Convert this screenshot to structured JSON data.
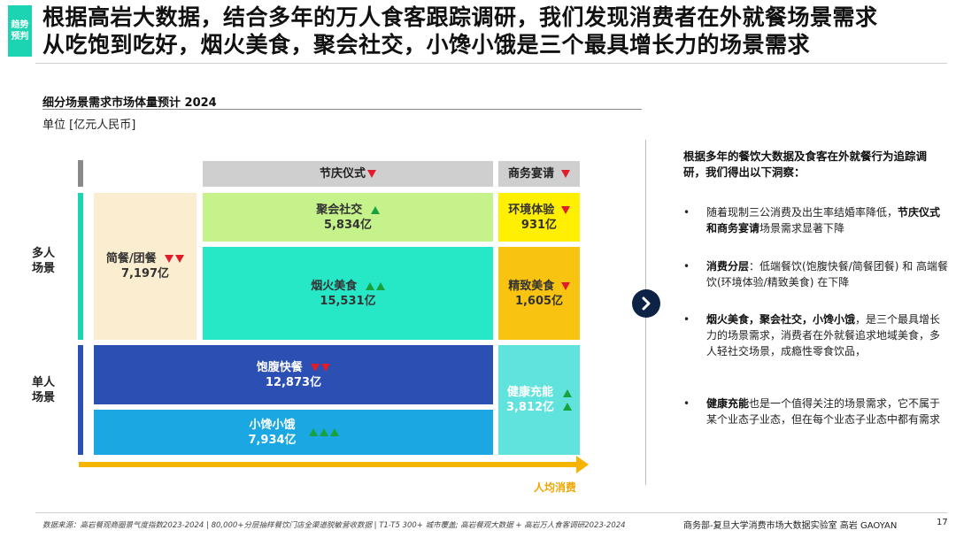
{
  "tag": {
    "line1": "趋势",
    "line2": "预判"
  },
  "title": {
    "line1": "根据高岩大数据，结合多年的万人食客跟踪调研，我们发现消费者在外就餐场景需求",
    "line2": "从吃饱到吃好，烟火美食，聚会社交，小馋小饿是三个最具增长力的场景需求"
  },
  "diagram": {
    "subtitle": "细分场景需求市场体量预计 2024",
    "unit": "单位 [亿元人民币]",
    "headers": {
      "festival": "节庆仪式",
      "business": "商务宴请"
    },
    "row_labels": {
      "multi": [
        "多人",
        "场景"
      ],
      "single": [
        "单人",
        "场景"
      ]
    },
    "cells": {
      "simple": {
        "name": "简餐/团餐",
        "value": "7,197亿",
        "trend": "down2"
      },
      "social": {
        "name": "聚会社交",
        "value": "5,834亿",
        "trend": "up1"
      },
      "fire": {
        "name": "烟火美食",
        "value": "15,531亿",
        "trend": "up2"
      },
      "env": {
        "name": "环境体验",
        "value": "931亿",
        "trend": "down1"
      },
      "fine": {
        "name": "精致美食",
        "value": "1,605亿",
        "trend": "down1"
      },
      "full": {
        "name": "饱腹快餐",
        "value": "12,873亿",
        "trend": "down2"
      },
      "snack": {
        "name": "小馋小饿",
        "value": "7,934亿",
        "trend": "up3"
      },
      "health": {
        "name": "健康充能",
        "value": "3,812亿",
        "trend": "up2"
      }
    },
    "axis_label": "人均消费",
    "colors": {
      "simple": "#fbedcf",
      "social": "#c5f28a",
      "fire": "#26e8c7",
      "env": "#ffef00",
      "fine": "#f9c411",
      "full": "#2b4fb2",
      "snack": "#1ba7e1",
      "health": "#5fe3dc",
      "arrow": "#f5b400",
      "down": "#e21b2b",
      "up": "#18a23b"
    }
  },
  "insights": {
    "heading": "根据多年的餐饮大数据及食客在外就餐行为追踪调研，我们得出以下洞察：",
    "b1_text": "随着现制三公消费及出生率结婚率降低，",
    "b1_bold": "节庆仪式和商务宴请",
    "b1_tail": "场景需求显著下降",
    "b2_bold": "消费分层",
    "b2_text": "：低端餐饮(饱腹快餐/简餐团餐) 和 高端餐饮(环境体验/精致美食) 在下降",
    "b3_bold": "烟火美食，聚会社交，小馋小饿",
    "b3_text": "，是三个最具增长力的场景需求，消费者在外就餐追求地域美食，多人轻社交场景，成瘾性零食饮品，",
    "b4_bold": "健康充能",
    "b4_text": "也是一个值得关注的场景需求，它不属于某个业态子业态，但在每个业态子业态中都有需求"
  },
  "footer": {
    "source": "数据来源：高岩餐观商圈景气度指数2023-2024 | 80,000+分层抽样餐饮门店全渠道脱敏营收数据 | T1-T5 300+ 城市覆盖; 高岩餐观大数据 + 高岩万人食客调研2023-2024",
    "org": "商务部-复旦大学消费市场大数据实验室   高岩 GAOYAN",
    "page": "17"
  }
}
